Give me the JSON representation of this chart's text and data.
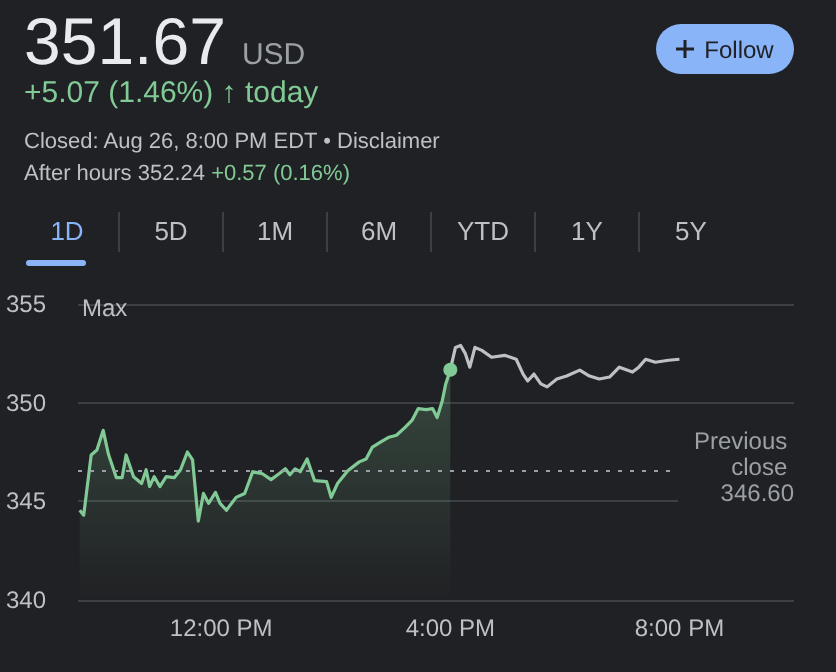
{
  "chart_data": {
    "type": "line",
    "title": "351.67",
    "subtitle": "+5.07 (1.46%) ↑ today",
    "annotations": [
      "USD",
      "Closed: Aug 26, 8:00 PM EDT • Disclaimer",
      "After hours 352.24",
      "+0.57 (0.16%)",
      "Follow",
      "1D",
      "5D",
      "1M",
      "6M",
      "YTD",
      "1Y",
      "5Y",
      "Max"
    ],
    "series": [
      {
        "type": "area",
        "color": "#81c995",
        "x": [
          9.53,
          9.6,
          9.73,
          9.83,
          9.94,
          10.03,
          10.17,
          10.27,
          10.34,
          10.47,
          10.61,
          10.69,
          10.75,
          10.83,
          10.93,
          11.04,
          11.18,
          11.29,
          11.41,
          11.5,
          11.6,
          11.69,
          11.78,
          11.9,
          11.98,
          12.09,
          12.26,
          12.41,
          12.55,
          12.72,
          12.87,
          13.01,
          13.12,
          13.2,
          13.29,
          13.38,
          13.5,
          13.63,
          13.84,
          13.92,
          14.03,
          14.21,
          14.41,
          14.53,
          14.64,
          14.78,
          14.93,
          15.06,
          15.21,
          15.33,
          15.44,
          15.58,
          15.69,
          15.77,
          15.86,
          15.92,
          16.0
        ],
        "values": [
          344.55,
          344.3,
          347.35,
          347.6,
          348.6,
          347.4,
          346.2,
          346.2,
          347.35,
          346.25,
          345.9,
          346.6,
          345.75,
          346.25,
          345.75,
          346.25,
          346.2,
          346.6,
          347.5,
          347.1,
          344.0,
          345.4,
          344.9,
          345.45,
          344.9,
          344.55,
          345.2,
          345.4,
          346.5,
          346.4,
          346.1,
          346.4,
          346.65,
          346.35,
          346.65,
          346.5,
          347.15,
          346.05,
          346.0,
          345.2,
          345.9,
          346.55,
          347.0,
          347.15,
          347.75,
          348.0,
          348.25,
          348.35,
          348.75,
          349.1,
          349.7,
          349.65,
          349.7,
          349.25,
          350.1,
          350.95,
          351.67
        ]
      },
      {
        "color": "#bdc1c6",
        "x": [
          16.0,
          16.09,
          16.18,
          16.26,
          16.34,
          16.43,
          16.55,
          16.72,
          16.95,
          17.15,
          17.27,
          17.35,
          17.46,
          17.58,
          17.69,
          17.86,
          18.03,
          18.26,
          18.43,
          18.6,
          18.78,
          18.95,
          19.18,
          19.29,
          19.41,
          19.58,
          19.81,
          20.0
        ],
        "values": [
          351.67,
          352.8,
          352.9,
          352.5,
          351.8,
          352.8,
          352.65,
          352.3,
          352.4,
          352.2,
          351.45,
          351.1,
          351.45,
          350.95,
          350.8,
          351.2,
          351.35,
          351.65,
          351.35,
          351.2,
          351.3,
          351.8,
          351.55,
          351.8,
          352.2,
          352.05,
          352.15,
          352.2
        ]
      }
    ],
    "xlim": [
      9.5,
      22
    ],
    "xticks": [
      {
        "value": 12,
        "label": "12:00 PM"
      },
      {
        "value": 16,
        "label": "4:00 PM"
      },
      {
        "value": 20,
        "label": "8:00 PM"
      }
    ],
    "ylim": [
      340,
      355
    ],
    "yticks": [
      340,
      345,
      350,
      355
    ],
    "grid": "y",
    "ref_lines": [
      {
        "axis": "y",
        "value": 346.6,
        "label": "Previous close 346.60",
        "color": "#9aa0a6",
        "line_style": "dotted"
      }
    ]
  }
}
